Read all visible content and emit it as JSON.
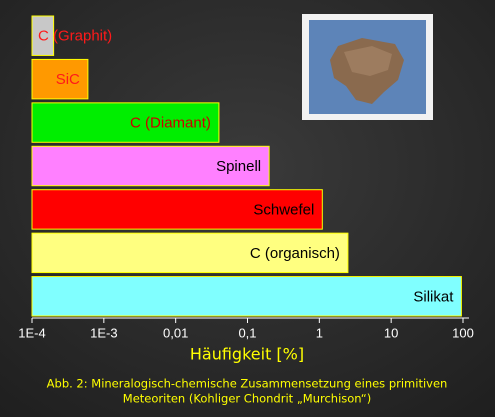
{
  "chart_data": {
    "type": "bar",
    "orientation": "horizontal",
    "log_x": true,
    "categories": [
      "C (Graphit)",
      "SiC",
      "C (Diamant)",
      "Spinell",
      "Schwefel",
      "C (organisch)",
      "Silikat"
    ],
    "values": [
      0.0002,
      0.0006,
      0.04,
      0.2,
      1.1,
      2.5,
      95
    ],
    "colors": [
      "#c8c8c8",
      "#ff9900",
      "#00ee00",
      "#ff80ff",
      "#ff0000",
      "#ffff80",
      "#80ffff"
    ],
    "label_colors": [
      "#ff1a1a",
      "#ff1a1a",
      "#cc0000",
      "#000000",
      "#000000",
      "#000000",
      "#000000"
    ],
    "xlim": [
      0.0001,
      100
    ],
    "xticks": [
      {
        "value": 0.0001,
        "label": "1E-4"
      },
      {
        "value": 0.001,
        "label": "1E-3"
      },
      {
        "value": 0.01,
        "label": "0,01"
      },
      {
        "value": 0.1,
        "label": "0,1"
      },
      1,
      10,
      100
    ],
    "xlabel": "Häufigkeit [%]",
    "caption_lines": [
      "Abb. 2: Mineralogisch-chemische Zusammensetzung eines primitiven",
      "Meteoriten (Kohliger Chondrit „Murchison“)"
    ]
  }
}
